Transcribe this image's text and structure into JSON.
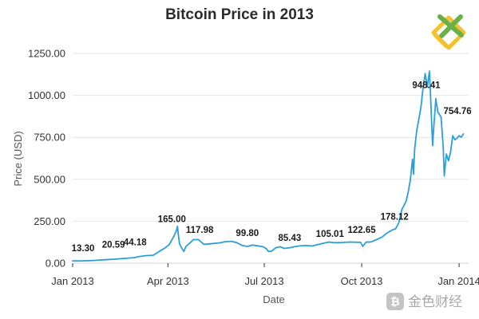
{
  "colors": {
    "line": "#2b9fd8",
    "logo_green": "#69b046",
    "logo_yellow": "#f2c230",
    "watermark": "#b0b0b0"
  },
  "logo": {
    "icon": "diamond-x-logo-icon"
  },
  "watermark": {
    "icon": "bitcoin-badge-icon",
    "text": "金色财经"
  },
  "chart_data": {
    "type": "line",
    "title": "Bitcoin Price in 2013",
    "xlabel": "Date",
    "ylabel": "Price (USD)",
    "ylim": [
      0,
      1250
    ],
    "xlim": [
      "2013-01-01",
      "2014-01-10"
    ],
    "grid": true,
    "y_ticks": [
      {
        "value": 0,
        "label": "0.00"
      },
      {
        "value": 250,
        "label": "250.00"
      },
      {
        "value": 500,
        "label": "500.00"
      },
      {
        "value": 750,
        "label": "750.00"
      },
      {
        "value": 1000,
        "label": "1000.00"
      },
      {
        "value": 1250,
        "label": "1250.00"
      }
    ],
    "x_ticks": [
      {
        "date": "2013-01-01",
        "label": "Jan 2013"
      },
      {
        "date": "2013-04-01",
        "label": "Apr 2013"
      },
      {
        "date": "2013-07-01",
        "label": "Jul 2013"
      },
      {
        "date": "2013-10-01",
        "label": "Oct 2013"
      },
      {
        "date": "2014-01-01",
        "label": "Jan 2014"
      }
    ],
    "series": [
      {
        "points": [
          [
            "2013-01-01",
            13.3
          ],
          [
            "2013-01-10",
            14
          ],
          [
            "2013-01-20",
            15.5
          ],
          [
            "2013-01-31",
            20.5
          ],
          [
            "2013-02-10",
            24
          ],
          [
            "2013-02-20",
            29
          ],
          [
            "2013-02-28",
            33
          ],
          [
            "2013-03-05",
            40
          ],
          [
            "2013-03-12",
            45
          ],
          [
            "2013-03-18",
            47
          ],
          [
            "2013-03-25",
            75
          ],
          [
            "2013-03-29",
            90
          ],
          [
            "2013-04-02",
            110
          ],
          [
            "2013-04-05",
            142
          ],
          [
            "2013-04-07",
            165
          ],
          [
            "2013-04-09",
            195
          ],
          [
            "2013-04-10",
            220
          ],
          [
            "2013-04-11",
            160
          ],
          [
            "2013-04-12",
            115
          ],
          [
            "2013-04-14",
            90
          ],
          [
            "2013-04-16",
            70
          ],
          [
            "2013-04-18",
            100
          ],
          [
            "2013-04-22",
            122
          ],
          [
            "2013-04-25",
            140
          ],
          [
            "2013-04-30",
            140
          ],
          [
            "2013-05-05",
            112
          ],
          [
            "2013-05-10",
            115
          ],
          [
            "2013-05-15",
            118
          ],
          [
            "2013-05-20",
            121
          ],
          [
            "2013-05-25",
            128
          ],
          [
            "2013-05-31",
            130
          ],
          [
            "2013-06-05",
            122
          ],
          [
            "2013-06-10",
            106
          ],
          [
            "2013-06-15",
            100
          ],
          [
            "2013-06-20",
            108
          ],
          [
            "2013-06-25",
            103
          ],
          [
            "2013-06-30",
            98
          ],
          [
            "2013-07-03",
            86
          ],
          [
            "2013-07-05",
            70
          ],
          [
            "2013-07-08",
            72
          ],
          [
            "2013-07-12",
            92
          ],
          [
            "2013-07-16",
            98
          ],
          [
            "2013-07-20",
            88
          ],
          [
            "2013-07-25",
            92
          ],
          [
            "2013-07-31",
            100
          ],
          [
            "2013-08-05",
            104
          ],
          [
            "2013-08-10",
            105
          ],
          [
            "2013-08-15",
            102
          ],
          [
            "2013-08-20",
            110
          ],
          [
            "2013-08-25",
            118
          ],
          [
            "2013-08-31",
            126
          ],
          [
            "2013-09-05",
            122
          ],
          [
            "2013-09-10",
            122
          ],
          [
            "2013-09-15",
            124
          ],
          [
            "2013-09-20",
            126
          ],
          [
            "2013-09-25",
            125
          ],
          [
            "2013-09-30",
            124
          ],
          [
            "2013-10-02",
            100
          ],
          [
            "2013-10-05",
            125
          ],
          [
            "2013-10-10",
            127
          ],
          [
            "2013-10-15",
            140
          ],
          [
            "2013-10-20",
            155
          ],
          [
            "2013-10-25",
            180
          ],
          [
            "2013-10-30",
            198
          ],
          [
            "2013-11-02",
            205
          ],
          [
            "2013-11-05",
            240
          ],
          [
            "2013-11-08",
            320
          ],
          [
            "2013-11-10",
            345
          ],
          [
            "2013-11-12",
            370
          ],
          [
            "2013-11-14",
            425
          ],
          [
            "2013-11-16",
            500
          ],
          [
            "2013-11-18",
            620
          ],
          [
            "2013-11-19",
            530
          ],
          [
            "2013-11-20",
            680
          ],
          [
            "2013-11-22",
            790
          ],
          [
            "2013-11-24",
            860
          ],
          [
            "2013-11-26",
            930
          ],
          [
            "2013-11-28",
            1050
          ],
          [
            "2013-11-30",
            1130
          ],
          [
            "2013-12-02",
            1050
          ],
          [
            "2013-12-04",
            1145
          ],
          [
            "2013-12-05",
            1000
          ],
          [
            "2013-12-06",
            850
          ],
          [
            "2013-12-07",
            700
          ],
          [
            "2013-12-08",
            800
          ],
          [
            "2013-12-10",
            980
          ],
          [
            "2013-12-12",
            900
          ],
          [
            "2013-12-14",
            880
          ],
          [
            "2013-12-15",
            870
          ],
          [
            "2013-12-17",
            690
          ],
          [
            "2013-12-18",
            520
          ],
          [
            "2013-12-20",
            650
          ],
          [
            "2013-12-22",
            610
          ],
          [
            "2013-12-24",
            665
          ],
          [
            "2013-12-26",
            760
          ],
          [
            "2013-12-28",
            735
          ],
          [
            "2013-12-30",
            745
          ],
          [
            "2014-01-01",
            760
          ],
          [
            "2014-01-03",
            750
          ],
          [
            "2014-01-05",
            770
          ]
        ]
      }
    ],
    "annotations": [
      {
        "date": "2013-01-01",
        "value": 13.3,
        "label": "13.30"
      },
      {
        "date": "2013-02-01",
        "value": 20.59,
        "label": "20.59"
      },
      {
        "date": "2013-03-01",
        "value": 44.18,
        "label": "44.18"
      },
      {
        "date": "2013-04-01",
        "value": 165.0,
        "label": "165.00"
      },
      {
        "date": "2013-05-01",
        "value": 117.98,
        "label": "117.98"
      },
      {
        "date": "2013-06-15",
        "value": 99.8,
        "label": "99.80"
      },
      {
        "date": "2013-07-25",
        "value": 85.43,
        "label": "85.43"
      },
      {
        "date": "2013-09-01",
        "value": 105.01,
        "label": "105.01"
      },
      {
        "date": "2013-10-01",
        "value": 122.65,
        "label": "122.65"
      },
      {
        "date": "2013-11-01",
        "value": 178.12,
        "label": "178.12"
      },
      {
        "date": "2013-12-01",
        "value": 948.41,
        "label": "948.41"
      },
      {
        "date": "2014-01-01",
        "value": 754.76,
        "label": "754.76"
      }
    ]
  }
}
